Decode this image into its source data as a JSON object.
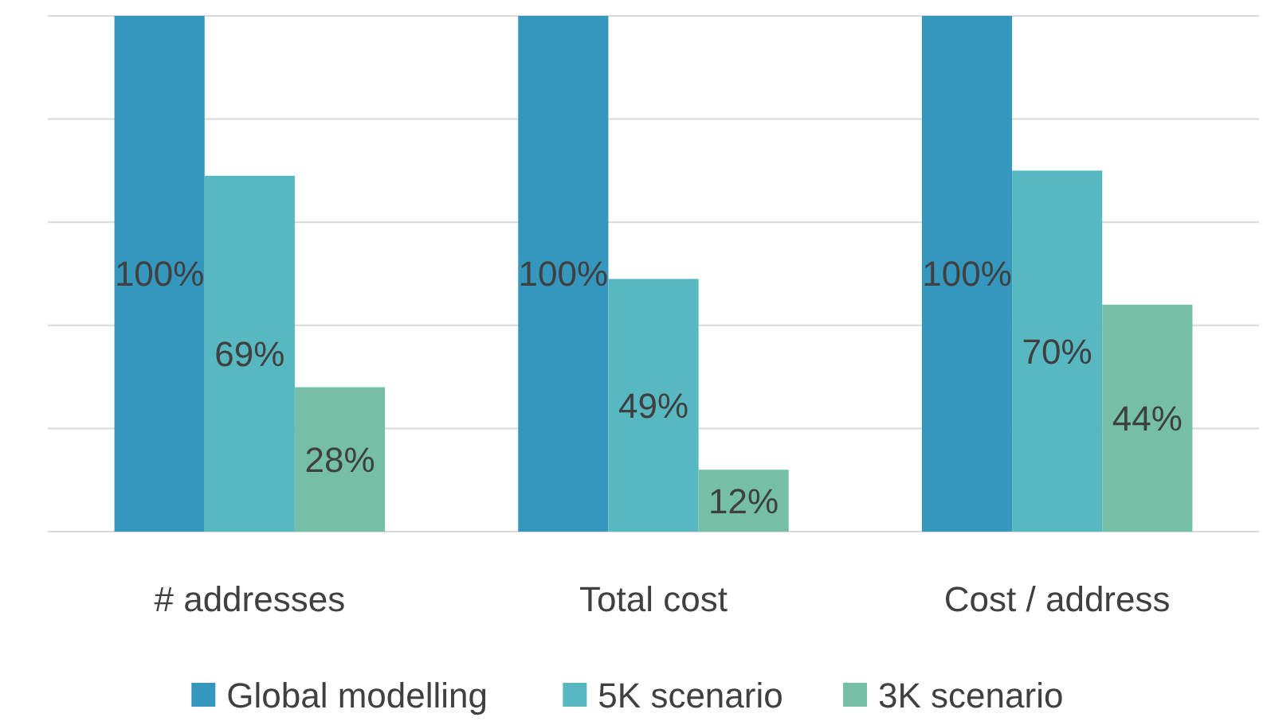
{
  "chart_data": {
    "type": "bar",
    "categories": [
      "# addresses",
      "Total cost",
      "Cost / address"
    ],
    "series": [
      {
        "name": "Global modelling",
        "color": "#3597bd",
        "values": [
          100,
          100,
          100
        ],
        "value_labels": [
          "100%",
          "100%",
          "100%"
        ]
      },
      {
        "name": "5K scenario",
        "color": "#58b8c1",
        "values": [
          69,
          49,
          70
        ],
        "value_labels": [
          "69%",
          "49%",
          "70%"
        ]
      },
      {
        "name": "3K scenario",
        "color": "#74bfa5",
        "values": [
          28,
          12,
          44
        ],
        "value_labels": [
          "28%",
          "12%",
          "44%"
        ]
      }
    ],
    "ylim": [
      0,
      100
    ],
    "yticks": [
      {
        "value": 0,
        "label": null
      },
      {
        "value": 20,
        "label": null
      },
      {
        "value": 40,
        "label": null
      },
      {
        "value": 60,
        "label": null
      },
      {
        "value": 80,
        "label": null
      },
      {
        "value": 100,
        "label": null
      }
    ],
    "grid": "y",
    "tick_labels": "x",
    "legend": "bottom"
  }
}
